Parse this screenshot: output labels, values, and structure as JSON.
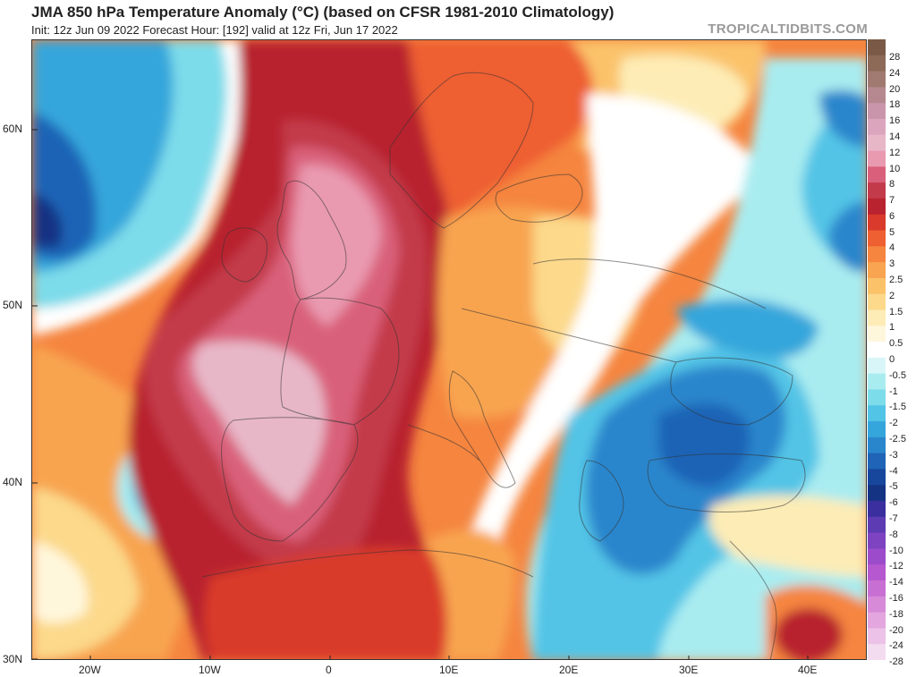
{
  "header": {
    "title": "JMA 850 hPa Temperature Anomaly (°C) (based on CFSR 1981-2010 Climatology)",
    "subtitle": "Init: 12z Jun 09 2022   Forecast Hour: [192]   valid at 12z Fri, Jun 17 2022",
    "brand": "TROPICALTIDBITS.COM"
  },
  "map": {
    "lat_labels": [
      "60N",
      "50N",
      "40N",
      "30N"
    ],
    "lon_labels": [
      "20W",
      "10W",
      "0",
      "10E",
      "20E",
      "30E",
      "40E"
    ]
  },
  "colorbar": {
    "labels": [
      "28",
      "24",
      "20",
      "18",
      "16",
      "14",
      "12",
      "10",
      "8",
      "7",
      "6",
      "5",
      "4",
      "3",
      "2.5",
      "2",
      "1.5",
      "1",
      "0.5",
      "0",
      "-0.5",
      "-1",
      "-1.5",
      "-2",
      "-2.5",
      "-3",
      "-4",
      "-5",
      "-6",
      "-7",
      "-8",
      "-10",
      "-12",
      "-14",
      "-16",
      "-18",
      "-20",
      "-24",
      "-28"
    ],
    "colors": [
      "#7a5a46",
      "#8d6958",
      "#a07a70",
      "#b58890",
      "#c995ab",
      "#dba6bd",
      "#e7b7c8",
      "#e99ab0",
      "#d9607a",
      "#c33a4a",
      "#b8232f",
      "#d93a2b",
      "#ee5f32",
      "#f5853f",
      "#f8a450",
      "#fbc26a",
      "#fcd98b",
      "#fdecb5",
      "#fff7dc",
      "#ffffff",
      "#d8f6f7",
      "#a9ecf0",
      "#7ddcea",
      "#52c4e6",
      "#35a6db",
      "#2a86cc",
      "#1f64b6",
      "#17469d",
      "#153383",
      "#3b2fa0",
      "#5d3bb3",
      "#7d43c1",
      "#9c4ccb",
      "#b658cf",
      "#c86fd3",
      "#d68ad8",
      "#e3a6df",
      "#edc2e8",
      "#f4dcf0"
    ]
  }
}
